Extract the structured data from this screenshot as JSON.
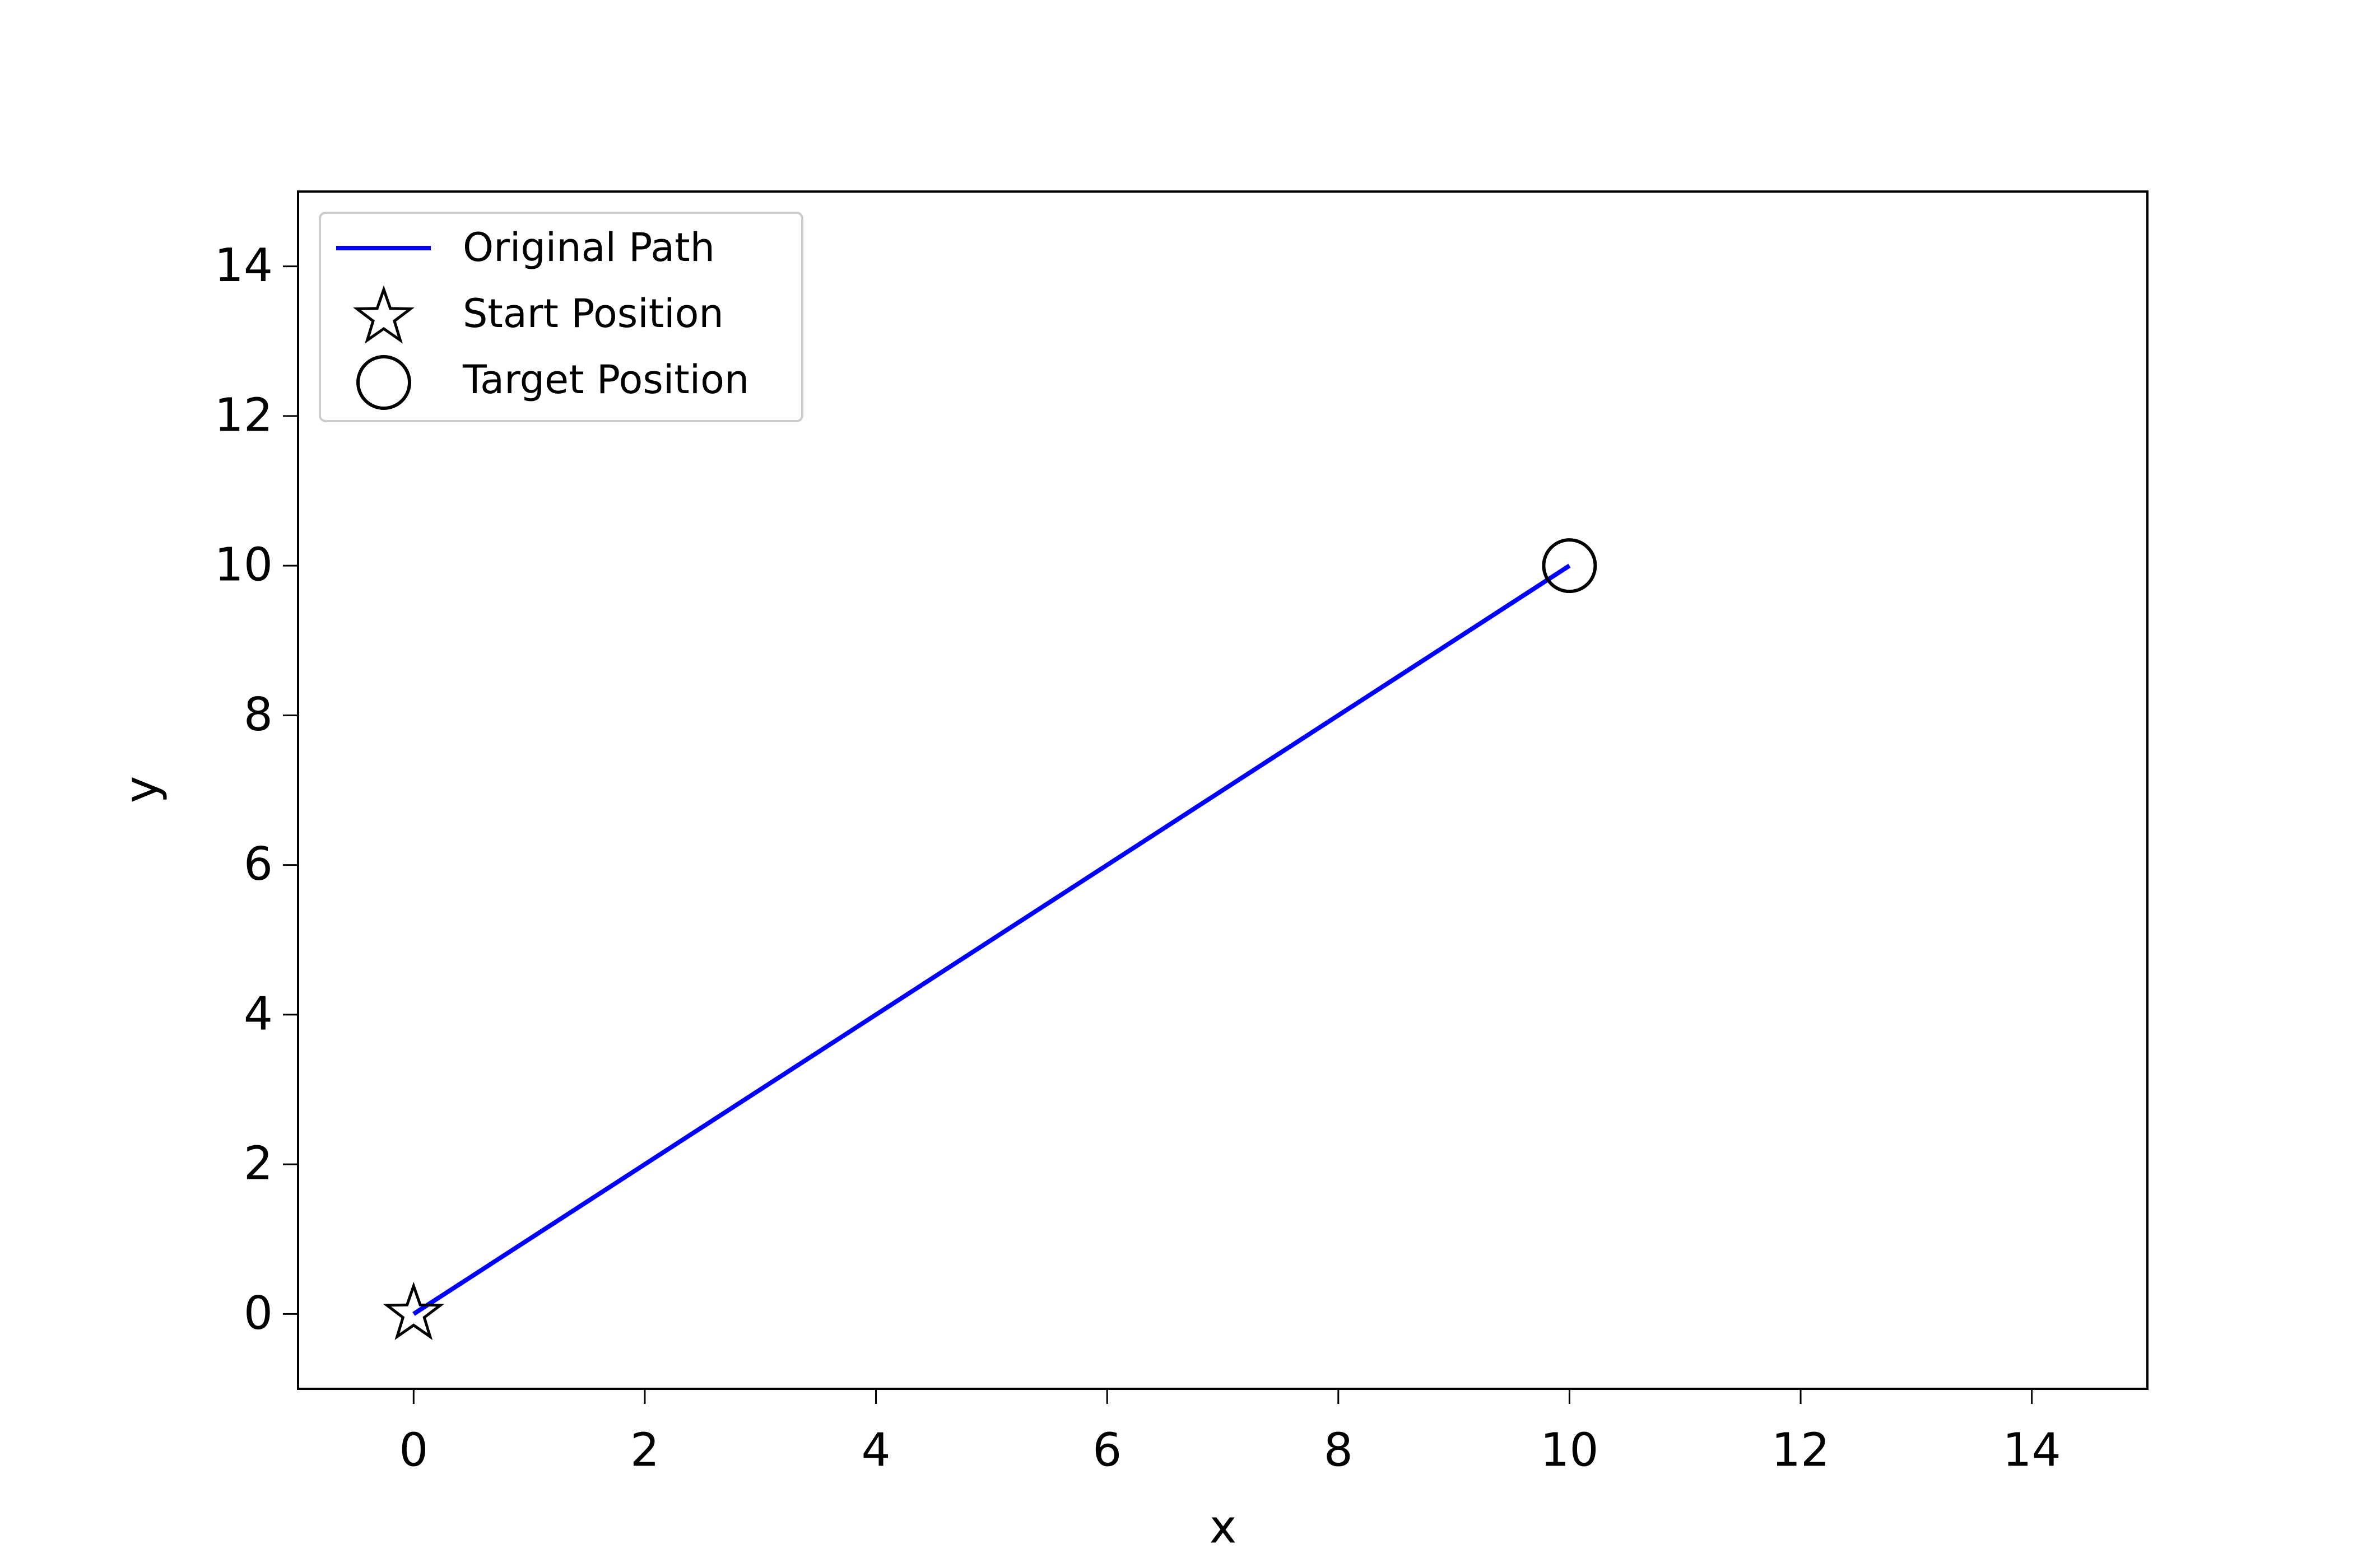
{
  "chart_data": {
    "type": "line",
    "xlabel": "x",
    "ylabel": "y",
    "xlim": [
      -1,
      15
    ],
    "ylim": [
      -1,
      15
    ],
    "xticks": [
      0,
      2,
      4,
      6,
      8,
      10,
      12,
      14
    ],
    "yticks": [
      0,
      2,
      4,
      6,
      8,
      10,
      12,
      14
    ],
    "legend": "upper left",
    "series": [
      {
        "name": "Original Path",
        "color": "blue",
        "marker": "none",
        "x": [
          0,
          10
        ],
        "values": [
          0,
          10
        ]
      },
      {
        "name": "Start Position",
        "color": "black",
        "marker": "star",
        "x": [
          0
        ],
        "values": [
          0
        ]
      },
      {
        "name": "Target Position",
        "color": "black",
        "marker": "circle",
        "x": [
          10
        ],
        "values": [
          10
        ]
      }
    ]
  }
}
